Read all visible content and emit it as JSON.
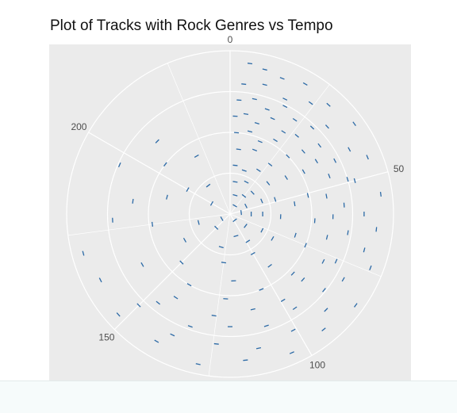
{
  "chart_data": {
    "type": "scatter",
    "coord": "polar",
    "title": "Plot of Tracks with Rock Genres vs Tempo",
    "xlabel": "",
    "ylabel": "",
    "theta_var": "tempo",
    "theta_range": [
      0,
      240
    ],
    "theta_tick_labels": [
      "0",
      "50",
      "100",
      "150",
      "200"
    ],
    "theta_ticks": [
      0,
      50,
      100,
      150,
      200
    ],
    "mark": "short tangential dash",
    "grid": true,
    "legend": "none",
    "colors": {
      "panel_background": "#ebebeb",
      "grid": "#ffffff",
      "point": "#2c6aa6",
      "title": "#111111",
      "tick_label": "#4d4d4d"
    },
    "series": [
      {
        "points": [
          {
            "tempo": 5,
            "r": 0.93
          },
          {
            "tempo": 9,
            "r": 0.91
          },
          {
            "tempo": 14,
            "r": 0.89
          },
          {
            "tempo": 20,
            "r": 0.92
          },
          {
            "tempo": 28,
            "r": 0.9
          },
          {
            "tempo": 36,
            "r": 0.94
          },
          {
            "tempo": 45,
            "r": 0.91
          },
          {
            "tempo": 55,
            "r": 0.93
          },
          {
            "tempo": 64,
            "r": 0.9
          },
          {
            "tempo": 74,
            "r": 0.92
          },
          {
            "tempo": 84,
            "r": 0.95
          },
          {
            "tempo": 94,
            "r": 0.91
          },
          {
            "tempo": 104,
            "r": 0.93
          },
          {
            "tempo": 116,
            "r": 0.9
          },
          {
            "tempo": 128,
            "r": 0.94
          },
          {
            "tempo": 140,
            "r": 0.9
          },
          {
            "tempo": 152,
            "r": 0.92
          },
          {
            "tempo": 162,
            "r": 0.89
          },
          {
            "tempo": 170,
            "r": 0.93
          },
          {
            "tempo": 4,
            "r": 0.8
          },
          {
            "tempo": 10,
            "r": 0.82
          },
          {
            "tempo": 17,
            "r": 0.78
          },
          {
            "tempo": 24,
            "r": 0.84
          },
          {
            "tempo": 32,
            "r": 0.8
          },
          {
            "tempo": 41,
            "r": 0.83
          },
          {
            "tempo": 50,
            "r": 0.79
          },
          {
            "tempo": 60,
            "r": 0.82
          },
          {
            "tempo": 70,
            "r": 0.85
          },
          {
            "tempo": 80,
            "r": 0.8
          },
          {
            "tempo": 90,
            "r": 0.83
          },
          {
            "tempo": 101,
            "r": 0.81
          },
          {
            "tempo": 112,
            "r": 0.84
          },
          {
            "tempo": 124,
            "r": 0.8
          },
          {
            "tempo": 137,
            "r": 0.82
          },
          {
            "tempo": 150,
            "r": 0.79
          },
          {
            "tempo": 3,
            "r": 0.7
          },
          {
            "tempo": 8,
            "r": 0.72
          },
          {
            "tempo": 13,
            "r": 0.68
          },
          {
            "tempo": 18,
            "r": 0.74
          },
          {
            "tempo": 23,
            "r": 0.7
          },
          {
            "tempo": 29,
            "r": 0.73
          },
          {
            "tempo": 35,
            "r": 0.69
          },
          {
            "tempo": 42,
            "r": 0.72
          },
          {
            "tempo": 49,
            "r": 0.75
          },
          {
            "tempo": 57,
            "r": 0.7
          },
          {
            "tempo": 66,
            "r": 0.73
          },
          {
            "tempo": 76,
            "r": 0.71
          },
          {
            "tempo": 86,
            "r": 0.74
          },
          {
            "tempo": 97,
            "r": 0.7
          },
          {
            "tempo": 108,
            "r": 0.72
          },
          {
            "tempo": 120,
            "r": 0.69
          },
          {
            "tempo": 133,
            "r": 0.73
          },
          {
            "tempo": 146,
            "r": 0.7
          },
          {
            "tempo": 178,
            "r": 0.72
          },
          {
            "tempo": 196,
            "r": 0.74
          },
          {
            "tempo": 2,
            "r": 0.6
          },
          {
            "tempo": 6,
            "r": 0.62
          },
          {
            "tempo": 11,
            "r": 0.58
          },
          {
            "tempo": 16,
            "r": 0.64
          },
          {
            "tempo": 22,
            "r": 0.6
          },
          {
            "tempo": 27,
            "r": 0.63
          },
          {
            "tempo": 33,
            "r": 0.59
          },
          {
            "tempo": 39,
            "r": 0.62
          },
          {
            "tempo": 46,
            "r": 0.65
          },
          {
            "tempo": 53,
            "r": 0.6
          },
          {
            "tempo": 61,
            "r": 0.63
          },
          {
            "tempo": 69,
            "r": 0.61
          },
          {
            "tempo": 78,
            "r": 0.64
          },
          {
            "tempo": 88,
            "r": 0.6
          },
          {
            "tempo": 99,
            "r": 0.62
          },
          {
            "tempo": 111,
            "r": 0.6
          },
          {
            "tempo": 126,
            "r": 0.63
          },
          {
            "tempo": 142,
            "r": 0.61
          },
          {
            "tempo": 160,
            "r": 0.62
          },
          {
            "tempo": 185,
            "r": 0.6
          },
          {
            "tempo": 210,
            "r": 0.63
          },
          {
            "tempo": 3,
            "r": 0.5
          },
          {
            "tempo": 9,
            "r": 0.52
          },
          {
            "tempo": 15,
            "r": 0.48
          },
          {
            "tempo": 21,
            "r": 0.53
          },
          {
            "tempo": 30,
            "r": 0.5
          },
          {
            "tempo": 40,
            "r": 0.52
          },
          {
            "tempo": 51,
            "r": 0.49
          },
          {
            "tempo": 63,
            "r": 0.52
          },
          {
            "tempo": 75,
            "r": 0.5
          },
          {
            "tempo": 89,
            "r": 0.53
          },
          {
            "tempo": 105,
            "r": 0.5
          },
          {
            "tempo": 122,
            "r": 0.52
          },
          {
            "tempo": 140,
            "r": 0.5
          },
          {
            "tempo": 175,
            "r": 0.48
          },
          {
            "tempo": 205,
            "r": 0.5
          },
          {
            "tempo": 5,
            "r": 0.4
          },
          {
            "tempo": 14,
            "r": 0.42
          },
          {
            "tempo": 26,
            "r": 0.39
          },
          {
            "tempo": 38,
            "r": 0.41
          },
          {
            "tempo": 54,
            "r": 0.4
          },
          {
            "tempo": 72,
            "r": 0.42
          },
          {
            "tempo": 95,
            "r": 0.4
          },
          {
            "tempo": 118,
            "r": 0.41
          },
          {
            "tempo": 150,
            "r": 0.42
          },
          {
            "tempo": 190,
            "r": 0.4
          },
          {
            "tempo": 220,
            "r": 0.41
          },
          {
            "tempo": 4,
            "r": 0.3
          },
          {
            "tempo": 12,
            "r": 0.28
          },
          {
            "tempo": 22,
            "r": 0.32
          },
          {
            "tempo": 34,
            "r": 0.3
          },
          {
            "tempo": 48,
            "r": 0.29
          },
          {
            "tempo": 62,
            "r": 0.31
          },
          {
            "tempo": 80,
            "r": 0.3
          },
          {
            "tempo": 100,
            "r": 0.28
          },
          {
            "tempo": 125,
            "r": 0.3
          },
          {
            "tempo": 160,
            "r": 0.32
          },
          {
            "tempo": 200,
            "r": 0.3
          },
          {
            "tempo": 6,
            "r": 0.2
          },
          {
            "tempo": 18,
            "r": 0.22
          },
          {
            "tempo": 31,
            "r": 0.19
          },
          {
            "tempo": 45,
            "r": 0.21
          },
          {
            "tempo": 60,
            "r": 0.2
          },
          {
            "tempo": 78,
            "r": 0.22
          },
          {
            "tempo": 98,
            "r": 0.2
          },
          {
            "tempo": 130,
            "r": 0.21
          },
          {
            "tempo": 170,
            "r": 0.2
          },
          {
            "tempo": 215,
            "r": 0.22
          },
          {
            "tempo": 10,
            "r": 0.12
          },
          {
            "tempo": 25,
            "r": 0.14
          },
          {
            "tempo": 42,
            "r": 0.11
          },
          {
            "tempo": 60,
            "r": 0.13
          },
          {
            "tempo": 85,
            "r": 0.12
          },
          {
            "tempo": 110,
            "r": 0.14
          },
          {
            "tempo": 150,
            "r": 0.12
          },
          {
            "tempo": 200,
            "r": 0.13
          },
          {
            "tempo": 20,
            "r": 0.06
          },
          {
            "tempo": 55,
            "r": 0.07
          },
          {
            "tempo": 95,
            "r": 0.05
          },
          {
            "tempo": 160,
            "r": 0.06
          }
        ]
      }
    ]
  }
}
